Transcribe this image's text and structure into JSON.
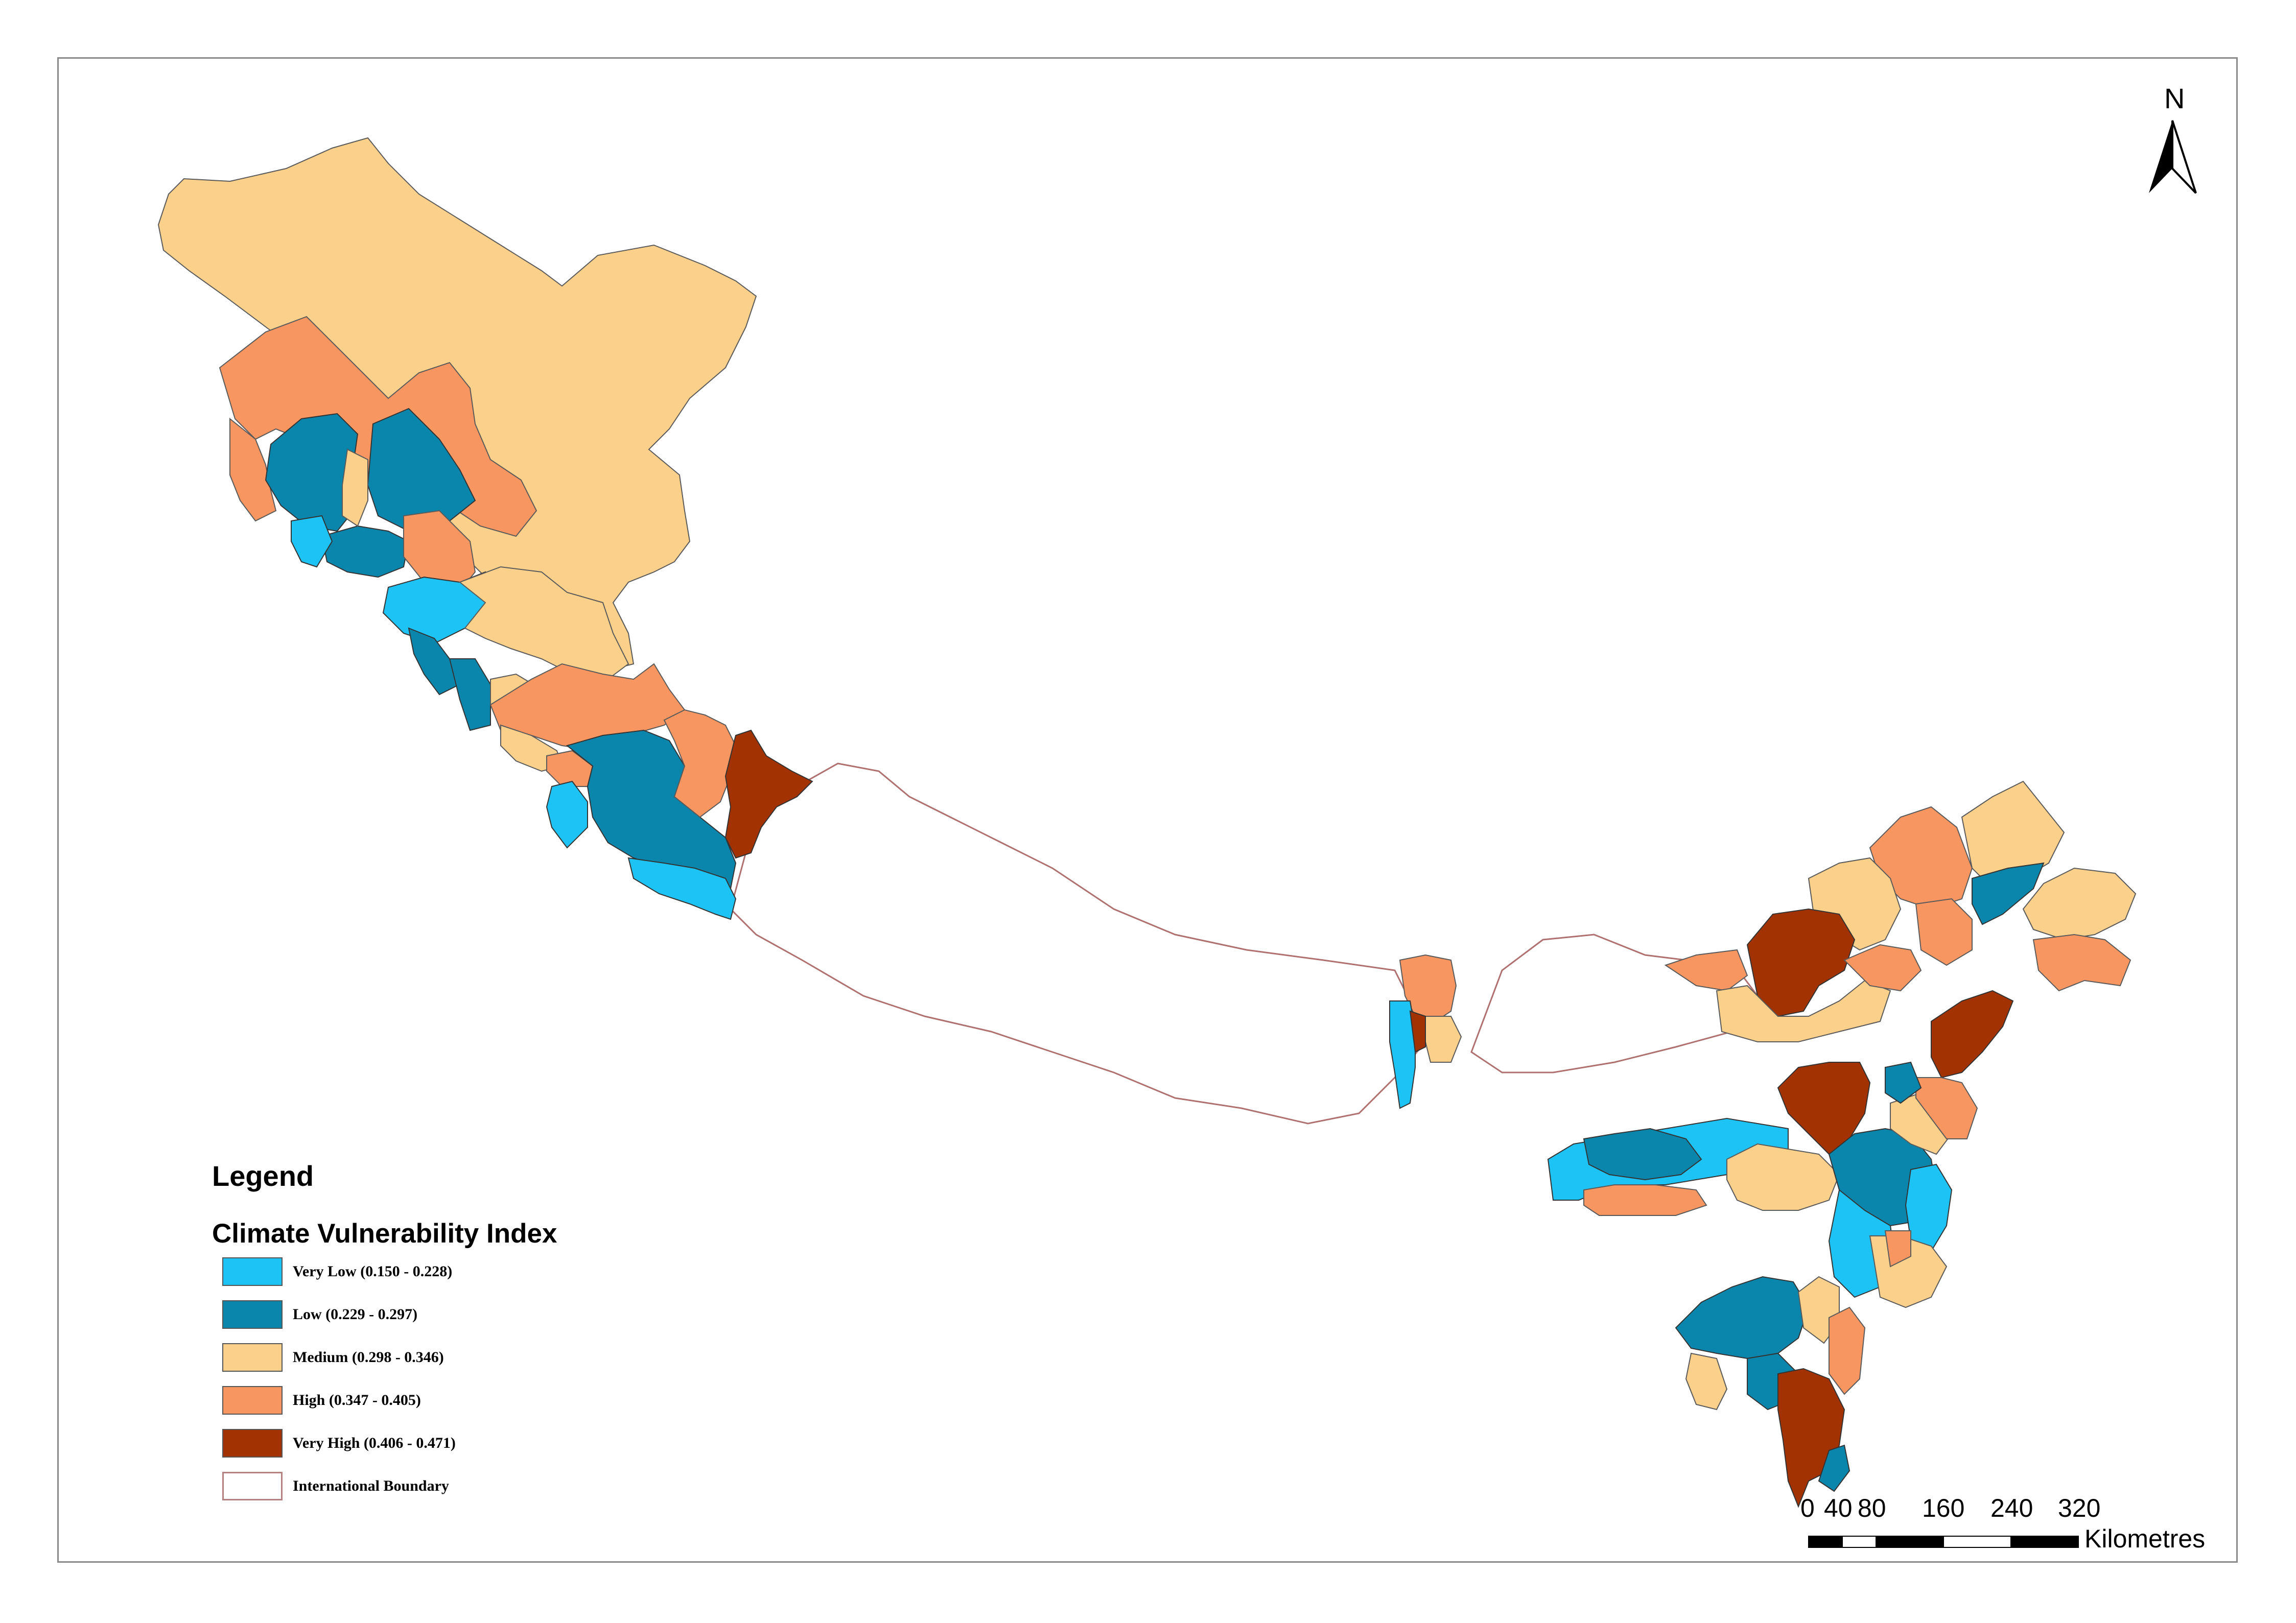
{
  "legend": {
    "title": "Legend",
    "subtitle": "Climate Vulnerability Index",
    "classes": [
      {
        "label": "Very Low (0.150 - 0.228)",
        "color": "#1ec3f5"
      },
      {
        "label": "Low (0.229 - 0.297)",
        "color": "#0a86ad"
      },
      {
        "label": "Medium (0.298 - 0.346)",
        "color": "#fbd08a"
      },
      {
        "label": "High (0.347 - 0.405)",
        "color": "#f79660"
      },
      {
        "label": "Very High (0.406 - 0.471)",
        "color": "#a23201"
      }
    ],
    "boundary_label": "International Boundary",
    "boundary_color": "#b07070"
  },
  "north_arrow": {
    "label": "N",
    "icon": "north-arrow-icon"
  },
  "scale_bar": {
    "ticks": [
      "0",
      "40",
      "80",
      "160",
      "240",
      "320"
    ],
    "unit": "Kilometres"
  }
}
